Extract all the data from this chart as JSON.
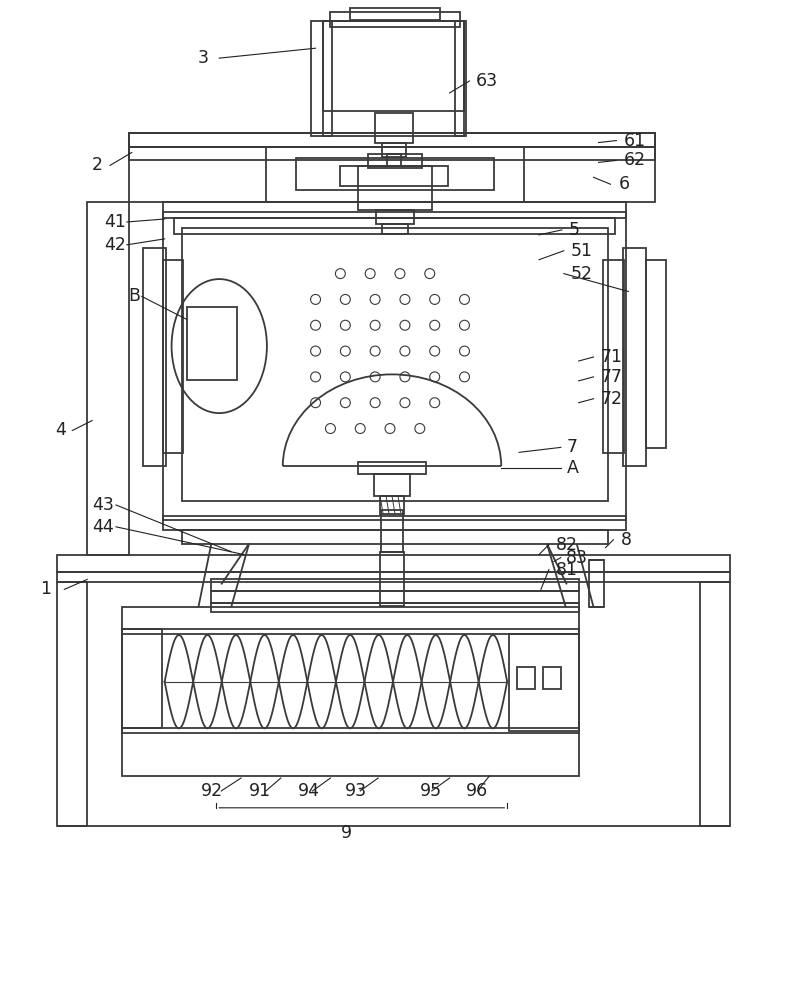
{
  "bg_color": "#ffffff",
  "line_color": "#3a3a3a",
  "lw": 1.3,
  "thin": 0.8,
  "fig_width": 7.87,
  "fig_height": 10.0
}
